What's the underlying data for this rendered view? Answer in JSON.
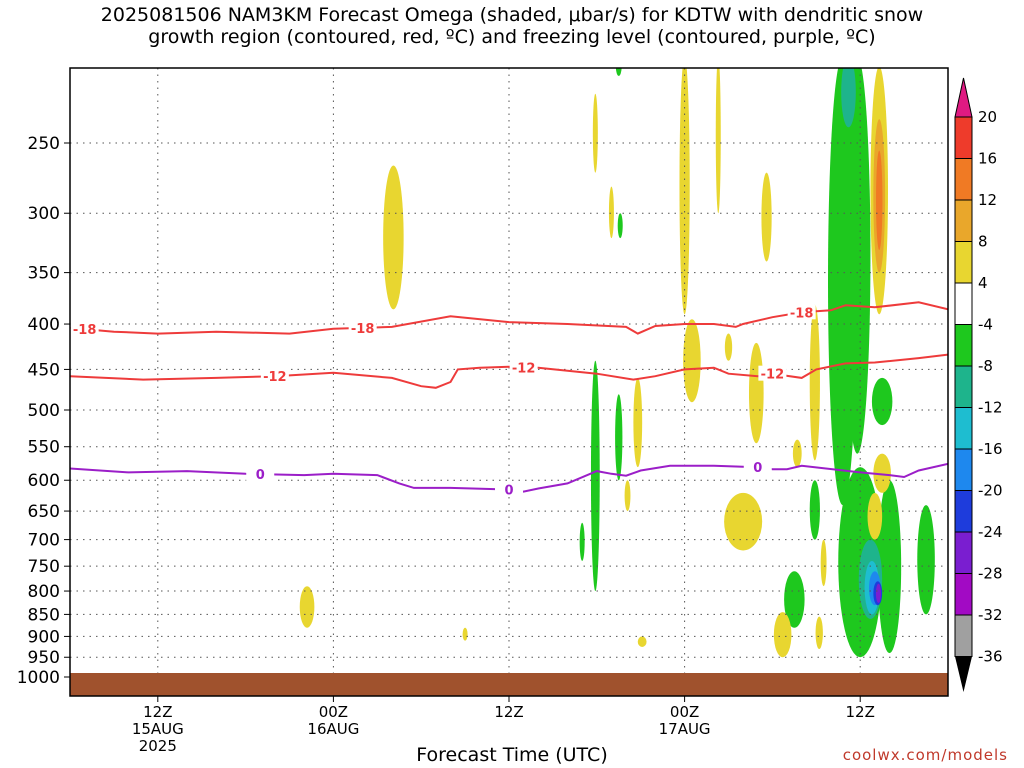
{
  "title_line1": "2025081506 NAM3KM Forecast Omega (shaded, μbar/s) for KDTW with dendritic snow",
  "title_line2": "growth region (contoured, red, ºC) and freezing level (contoured, purple, ºC)",
  "x_axis_title": "Forecast Time (UTC)",
  "credit": "coolwx.com/models",
  "chart_data": {
    "type": "time-height contour",
    "x_range_hours": [
      0,
      60
    ],
    "x_ticks": [
      {
        "h": 6,
        "lines": [
          "12Z",
          "15AUG",
          "2025"
        ]
      },
      {
        "h": 18,
        "lines": [
          "00Z",
          "16AUG"
        ]
      },
      {
        "h": 30,
        "lines": [
          "12Z"
        ]
      },
      {
        "h": 42,
        "lines": [
          "00Z",
          "17AUG"
        ]
      },
      {
        "h": 54,
        "lines": [
          "12Z"
        ]
      }
    ],
    "y_axis": {
      "scale": "log-pressure",
      "top_hpa": 200,
      "bottom_hpa": 1000,
      "inverted": true
    },
    "y_ticks": [
      250,
      300,
      350,
      400,
      450,
      500,
      550,
      600,
      650,
      700,
      750,
      800,
      850,
      900,
      950,
      1000
    ],
    "colorbar": {
      "labels": [
        "20",
        "16",
        "12",
        "8",
        "4",
        "-4",
        "-8",
        "-12",
        "-16",
        "-20",
        "-24",
        "-28",
        "-32",
        "-36"
      ],
      "colors": [
        "#ff3a6e",
        "#ee3b2b",
        "#f07a24",
        "#e9a72b",
        "#e8d630",
        "#ffffff",
        "#1ec81e",
        "#1eb48c",
        "#1ebdd0",
        "#1e88ee",
        "#1e3cdc",
        "#7a1ed0",
        "#a20ac4",
        "#a0a0a0"
      ]
    },
    "contours": [
      {
        "label": "-18",
        "color": "#ee3b3b",
        "points": [
          [
            0,
            404
          ],
          [
            3,
            408
          ],
          [
            6,
            410
          ],
          [
            10,
            408
          ],
          [
            15,
            410
          ],
          [
            18,
            405
          ],
          [
            22,
            403
          ],
          [
            26,
            392
          ],
          [
            30,
            398
          ],
          [
            34,
            400
          ],
          [
            38,
            403
          ],
          [
            38.8,
            410
          ],
          [
            40,
            402
          ],
          [
            42,
            400
          ],
          [
            44,
            400
          ],
          [
            45.5,
            403
          ],
          [
            46,
            400
          ],
          [
            48,
            393
          ],
          [
            50,
            388
          ],
          [
            52,
            386
          ],
          [
            53,
            381
          ],
          [
            55,
            383
          ],
          [
            58,
            378
          ],
          [
            60,
            385
          ]
        ]
      },
      {
        "label": "-12",
        "color": "#ee3b3b",
        "points": [
          [
            0,
            458
          ],
          [
            5,
            462
          ],
          [
            10,
            460
          ],
          [
            14,
            458
          ],
          [
            18,
            454
          ],
          [
            22,
            460
          ],
          [
            24,
            470
          ],
          [
            25,
            472
          ],
          [
            26,
            465
          ],
          [
            26.5,
            450
          ],
          [
            28,
            448
          ],
          [
            30,
            447
          ],
          [
            32,
            448
          ],
          [
            36,
            455
          ],
          [
            38.5,
            462
          ],
          [
            40,
            458
          ],
          [
            42,
            450
          ],
          [
            44,
            448
          ],
          [
            45,
            455
          ],
          [
            47,
            458
          ],
          [
            48,
            455
          ],
          [
            50,
            460
          ],
          [
            51,
            450
          ],
          [
            53,
            443
          ],
          [
            55,
            442
          ],
          [
            58,
            437
          ],
          [
            60,
            433
          ]
        ]
      },
      {
        "label": "0",
        "color": "#9b1ec8",
        "points": [
          [
            0,
            582
          ],
          [
            4,
            588
          ],
          [
            8,
            586
          ],
          [
            12,
            590
          ],
          [
            16,
            592
          ],
          [
            18,
            590
          ],
          [
            21,
            592
          ],
          [
            22.5,
            605
          ],
          [
            23.5,
            612
          ],
          [
            26,
            612
          ],
          [
            29,
            614
          ],
          [
            30,
            615
          ],
          [
            31,
            618
          ],
          [
            32,
            613
          ],
          [
            34,
            605
          ],
          [
            36,
            586
          ],
          [
            37,
            590
          ],
          [
            38,
            593
          ],
          [
            39,
            585
          ],
          [
            41,
            578
          ],
          [
            44,
            578
          ],
          [
            47,
            580
          ],
          [
            48,
            583
          ],
          [
            49,
            583
          ],
          [
            50,
            578
          ],
          [
            54,
            588
          ],
          [
            56,
            592
          ],
          [
            57,
            595
          ],
          [
            58,
            585
          ],
          [
            60,
            575
          ]
        ]
      }
    ]
  }
}
